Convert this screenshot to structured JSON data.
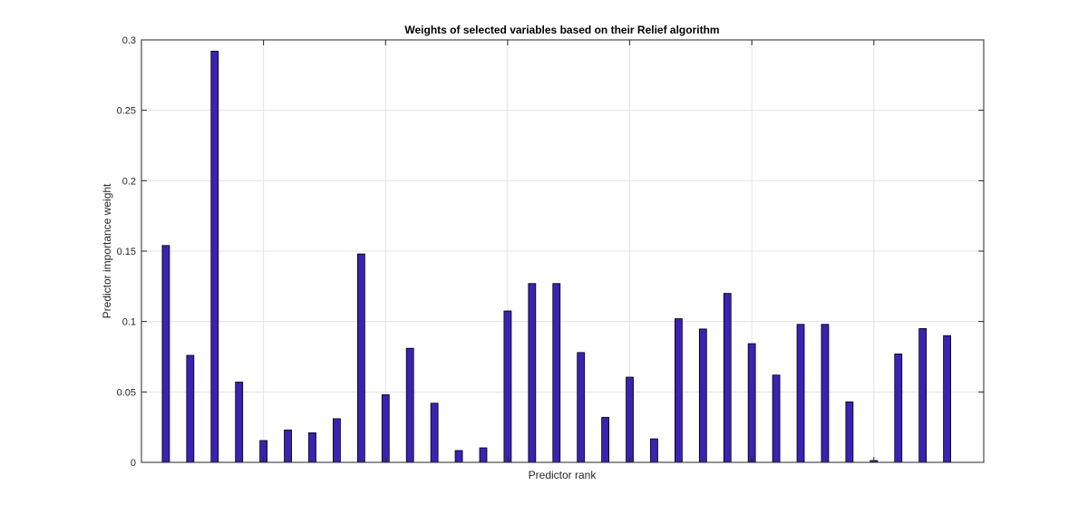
{
  "chart_data": {
    "type": "bar",
    "title": "Weights of selected variables based on their Relief algorithm",
    "xlabel": "Predictor rank",
    "ylabel": "Predictor importance weight",
    "ylim": [
      0,
      0.3
    ],
    "yticks": [
      "0",
      "0.05",
      "0.1",
      "0.15",
      "0.2",
      "0.25",
      "0.3"
    ],
    "ytick_values": [
      0,
      0.05,
      0.1,
      0.15,
      0.2,
      0.25,
      0.3
    ],
    "xlim": [
      0,
      34.5
    ],
    "xgrid_values": [
      5,
      10,
      15,
      20,
      25,
      30
    ],
    "grid": true,
    "bar_color": "#3b22b0",
    "values": [
      0.154,
      0.076,
      0.292,
      0.057,
      0.0155,
      0.023,
      0.021,
      0.031,
      0.148,
      0.048,
      0.081,
      0.042,
      0.0084,
      0.0103,
      0.1075,
      0.127,
      0.127,
      0.078,
      0.032,
      0.0605,
      0.0167,
      0.102,
      0.0947,
      0.12,
      0.0843,
      0.062,
      0.098,
      0.098,
      0.043,
      0.0013,
      0.077,
      0.095,
      0.09
    ]
  }
}
